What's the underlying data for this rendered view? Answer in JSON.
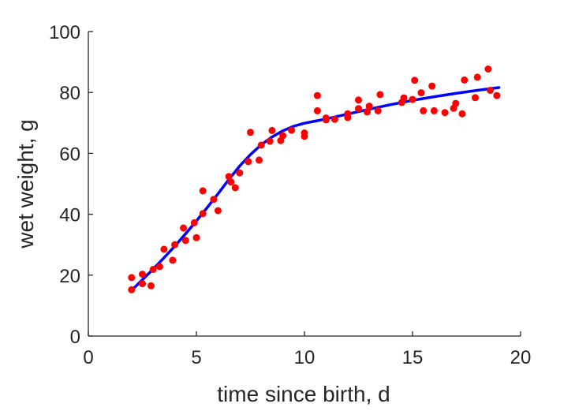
{
  "chart_data": {
    "type": "scatter",
    "title": "",
    "xlabel": "time since birth, d",
    "ylabel": "wet weight, g",
    "xlim": [
      0,
      20
    ],
    "ylim": [
      0,
      100
    ],
    "xticks": [
      0,
      5,
      10,
      15,
      20
    ],
    "yticks": [
      0,
      20,
      40,
      60,
      80,
      100
    ],
    "grid": false,
    "legend": "none",
    "colors": {
      "points": "#ff0000",
      "fit": "#0000ff",
      "axes": "#262626"
    },
    "series": [
      {
        "type": "scatter",
        "x": [
          2.0,
          2.0,
          2.5,
          2.5,
          2.9,
          3.0,
          3.3,
          3.5,
          3.9,
          4.0,
          4.4,
          4.5,
          4.9,
          5.0,
          5.3,
          5.3,
          5.8,
          6.0,
          6.5,
          6.6,
          6.8,
          7.0,
          7.4,
          7.5,
          7.9,
          8.0,
          8.4,
          8.5,
          8.9,
          9.0,
          9.4,
          10.0,
          10.0,
          10.6,
          10.6,
          11.0,
          11.0,
          11.4,
          12.0,
          12.0,
          12.5,
          12.5,
          12.9,
          13.0,
          13.4,
          13.5,
          14.5,
          14.6,
          15.0,
          15.1,
          15.4,
          15.5,
          15.9,
          16.0,
          16.5,
          16.9,
          17.0,
          17.3,
          17.4,
          17.9,
          18.0,
          18.5,
          18.6,
          18.9
        ],
        "y": [
          15.2,
          19.2,
          17.2,
          20.3,
          16.5,
          21.9,
          22.8,
          28.5,
          24.9,
          30.0,
          35.5,
          31.4,
          37.2,
          32.3,
          40.2,
          47.7,
          44.9,
          41.2,
          52.4,
          50.6,
          48.7,
          53.6,
          57.3,
          66.9,
          57.8,
          62.7,
          64.0,
          67.5,
          64.2,
          65.8,
          67.6,
          65.6,
          66.7,
          74.0,
          79.0,
          71.0,
          71.6,
          71.2,
          71.8,
          73.0,
          74.7,
          77.5,
          73.6,
          75.5,
          74.0,
          79.3,
          76.7,
          78.2,
          77.7,
          84.0,
          79.9,
          74.0,
          82.1,
          74.0,
          73.4,
          74.8,
          76.4,
          73.0,
          84.1,
          78.3,
          85.0,
          87.7,
          80.7,
          79.0
        ]
      },
      {
        "type": "line",
        "x": [
          2.0,
          2.5,
          3.0,
          3.5,
          4.0,
          4.5,
          5.0,
          5.5,
          6.0,
          6.5,
          7.0,
          7.5,
          8.0,
          8.5,
          9.0,
          9.5,
          10.0,
          10.5,
          11.0,
          12.0,
          13.0,
          14.0,
          15.0,
          16.0,
          17.0,
          18.0,
          19.0
        ],
        "y": [
          15.0,
          18.5,
          22.0,
          25.7,
          29.5,
          33.6,
          37.8,
          42.2,
          46.7,
          51.4,
          55.8,
          59.6,
          62.8,
          65.4,
          67.4,
          68.9,
          69.9,
          70.6,
          71.3,
          72.9,
          74.5,
          76.0,
          77.4,
          78.6,
          79.7,
          80.7,
          81.6
        ]
      }
    ]
  }
}
